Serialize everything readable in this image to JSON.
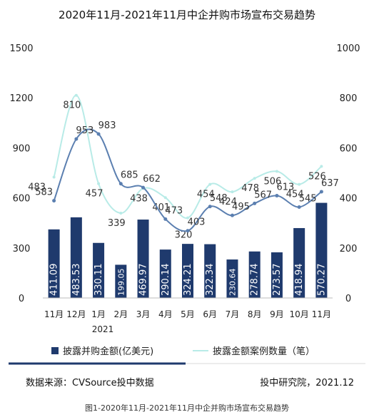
{
  "chart_data": {
    "type": "bar",
    "title": "2020年11月-2021年11月中企并购市场宣布交易趋势",
    "categories": [
      "11月",
      "12月",
      "1月",
      "2月",
      "3月",
      "4月",
      "5月",
      "6月",
      "7月",
      "8月",
      "9月",
      "10月",
      "11月"
    ],
    "year_label": "2021",
    "left_axis": {
      "ticks": [
        "0",
        "300",
        "600",
        "900",
        "1200",
        "1500"
      ],
      "ylim": [
        0,
        1500
      ]
    },
    "right_axis": {
      "ticks": [
        "0",
        "200",
        "400",
        "600",
        "800",
        "1000"
      ],
      "ylim": [
        0,
        1000
      ]
    },
    "series": [
      {
        "name": "披露并购金额(亿美元)",
        "type": "bar",
        "axis": "left",
        "color": "#1f3a6d",
        "values": [
          411.09,
          483.53,
          330.11,
          199.05,
          469.97,
          290.14,
          324.21,
          322.34,
          230.64,
          278.74,
          273.57,
          418.94,
          570.27
        ],
        "labels": [
          "411.09",
          "483.53",
          "330.11",
          "199.05",
          "469.97",
          "290.14",
          "324.21",
          "322.34",
          "230.64",
          "278.74",
          "273.57",
          "418.94",
          "570.27"
        ]
      },
      {
        "name": "披露金额案例数量（笔）",
        "type": "line",
        "axis": "right",
        "color": "#b8ebe7",
        "values": [
          483,
          810,
          457,
          339,
          438,
          401,
          320,
          454,
          424,
          478,
          506,
          454,
          526
        ],
        "labels": [
          "483",
          "810",
          "457",
          "339",
          "438",
          "401",
          "320",
          "454",
          "424",
          "478",
          "506",
          "454",
          "526"
        ]
      },
      {
        "type": "line",
        "axis": "left",
        "color": "#5b7fb0",
        "values": [
          583,
          953,
          983,
          685,
          662,
          473,
          403,
          548,
          495,
          567,
          613,
          545,
          637
        ],
        "labels": [
          "583",
          "953",
          "983",
          "685",
          "662",
          "473",
          "403",
          "548",
          "495",
          "567",
          "613",
          "545",
          "637"
        ]
      }
    ],
    "legend": [
      "披露并购金额(亿美元)",
      "披露金额案例数量（笔）"
    ],
    "legend_position": "bottom",
    "grid": false
  },
  "footer": {
    "source": "数据来源：CVSource投中数据",
    "org": "投中研究院，2021.12",
    "caption": "图1-2020年11月-2021年11月中企并购市场宣布交易趋势"
  }
}
